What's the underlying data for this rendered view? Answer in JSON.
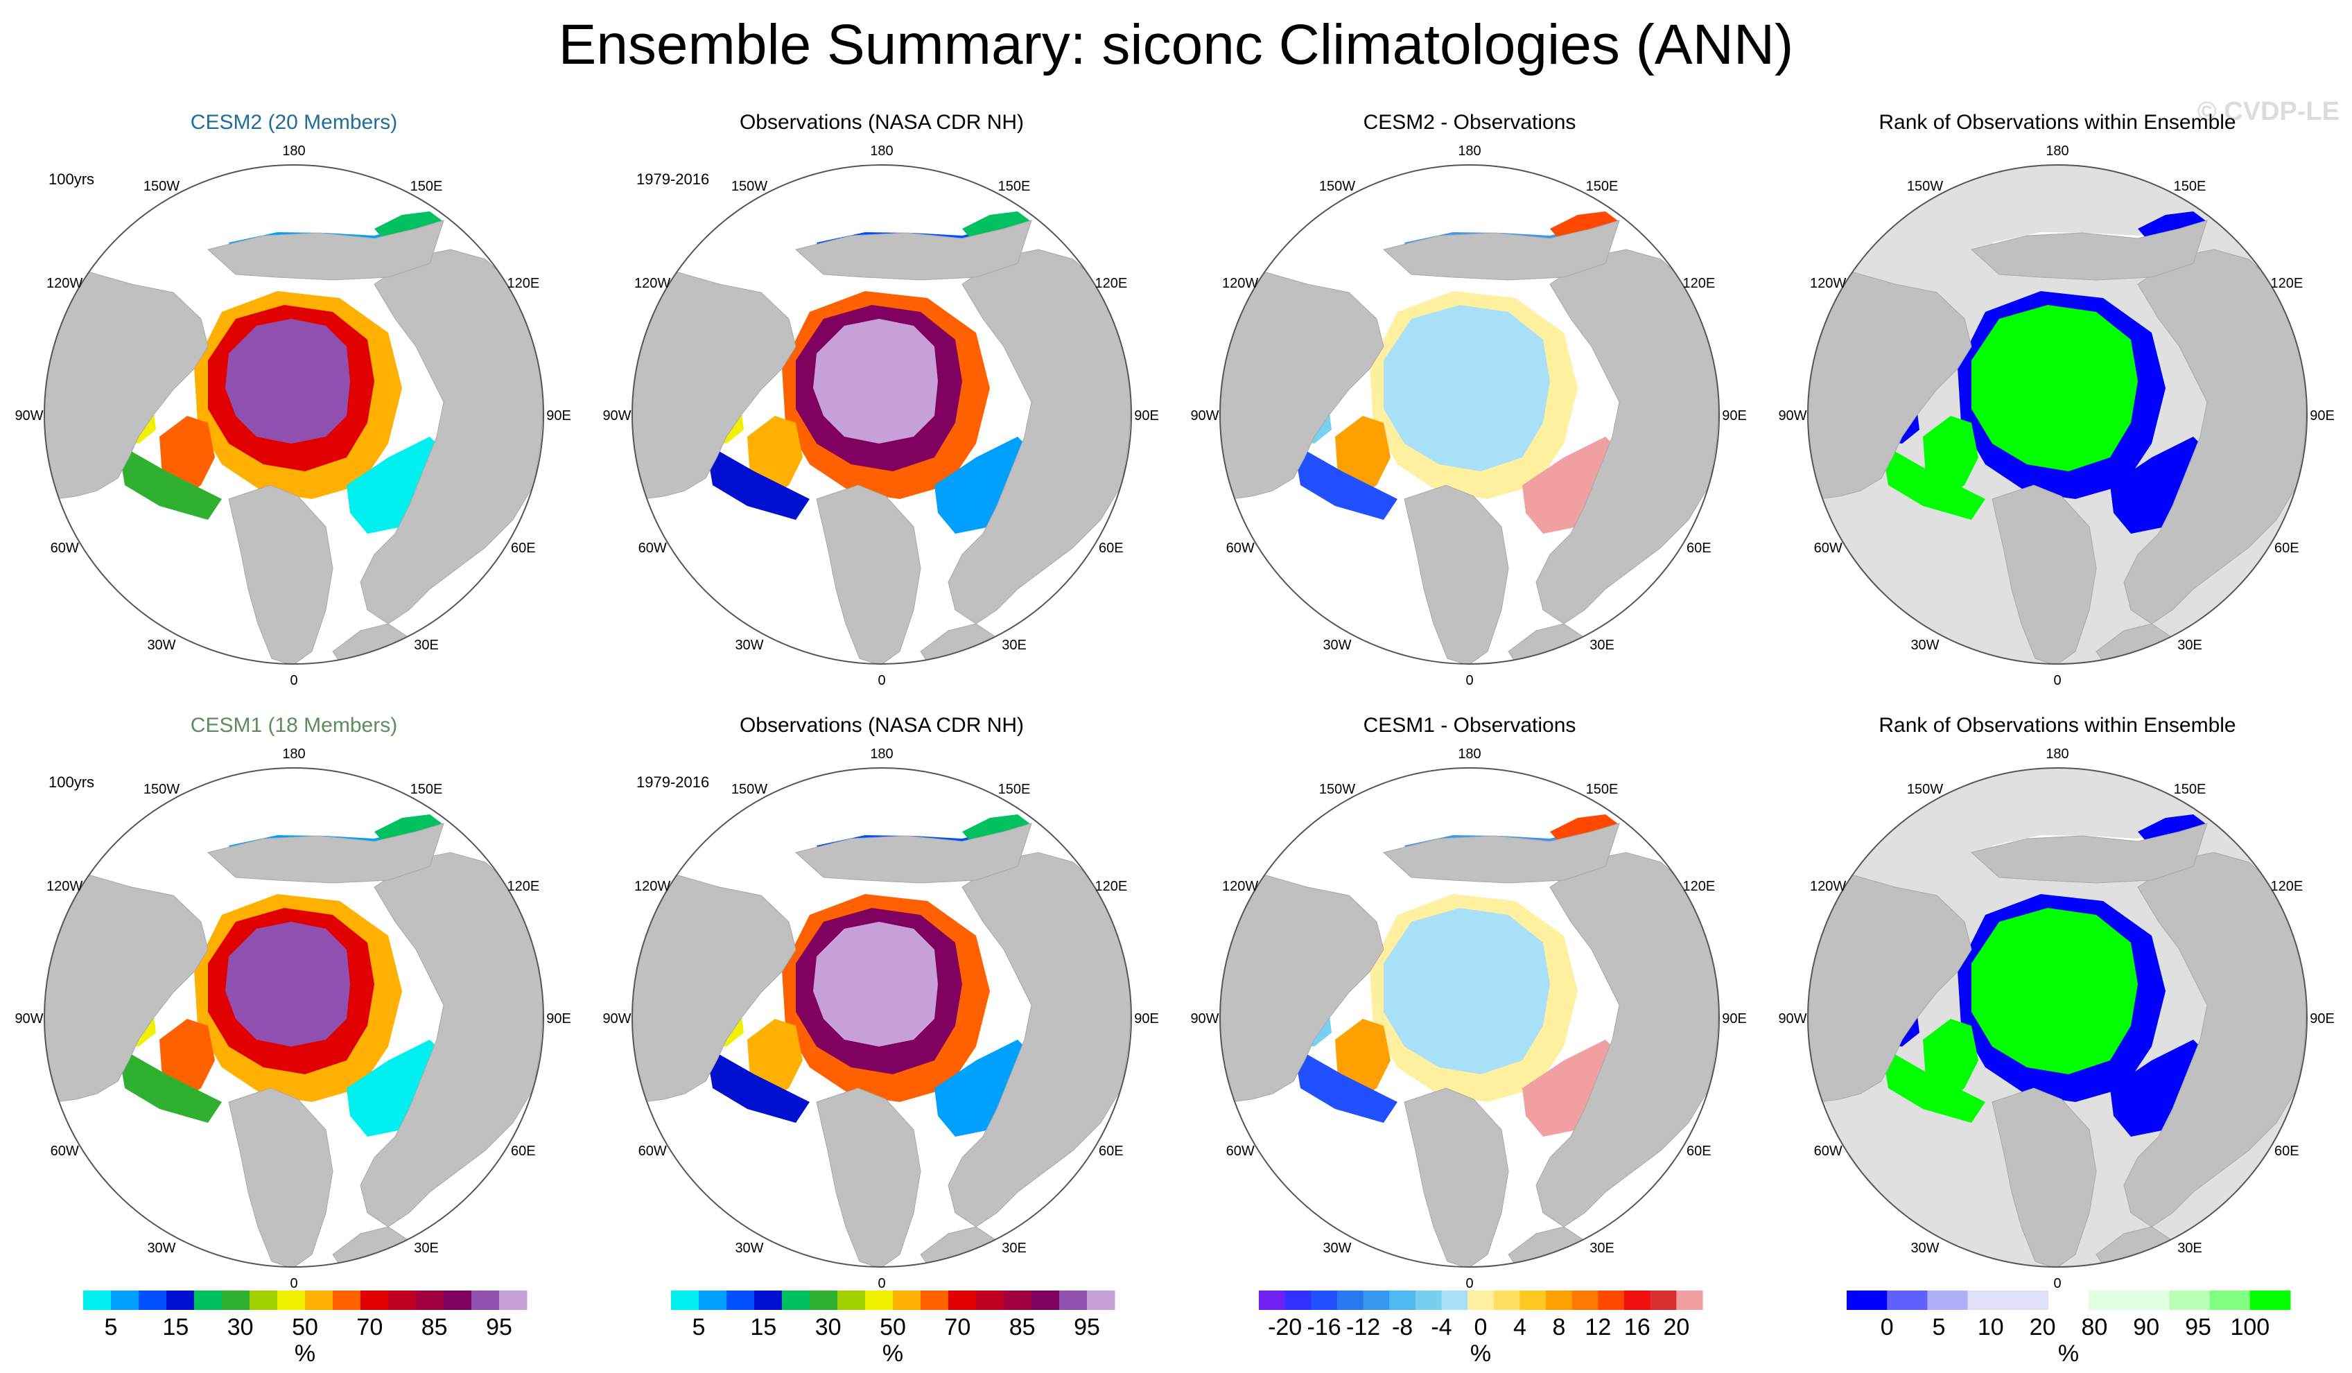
{
  "page": {
    "title": "Ensemble Summary: siconc Climatologies (ANN)",
    "watermark": "© CVDP-LE"
  },
  "lon_labels": [
    "180",
    "150E",
    "120E",
    "90E",
    "60E",
    "30E",
    "0",
    "30W",
    "60W",
    "90W",
    "120W",
    "150W"
  ],
  "colors": {
    "land": "#c0c0c0",
    "ocean": "#ffffff",
    "title_cesm2": "#1f6e9a",
    "title_cesm1": "#5e8c5e",
    "rank_background": "#e0e0e0"
  },
  "panels": [
    {
      "id": "r1c1",
      "title": "CESM2 (20 Members)",
      "title_color": "#1f6e9a",
      "note": "100yrs",
      "kind": "clim"
    },
    {
      "id": "r1c2",
      "title": "Observations (NASA CDR NH)",
      "title_color": "#000000",
      "note": "1979-2016",
      "kind": "obs"
    },
    {
      "id": "r1c3",
      "title": "CESM2 - Observations",
      "title_color": "#000000",
      "note": "",
      "kind": "diff"
    },
    {
      "id": "r1c4",
      "title": "Rank of Observations within Ensemble",
      "title_color": "#000000",
      "note": "",
      "kind": "rank"
    },
    {
      "id": "r2c1",
      "title": "CESM1 (18 Members)",
      "title_color": "#5e8c5e",
      "note": "100yrs",
      "kind": "clim"
    },
    {
      "id": "r2c2",
      "title": "Observations (NASA CDR NH)",
      "title_color": "#000000",
      "note": "1979-2016",
      "kind": "obs"
    },
    {
      "id": "r2c3",
      "title": "CESM1 - Observations",
      "title_color": "#000000",
      "note": "",
      "kind": "diff"
    },
    {
      "id": "r2c4",
      "title": "Rank of Observations within Ensemble",
      "title_color": "#000000",
      "note": "",
      "kind": "rank"
    }
  ],
  "colorbars": [
    {
      "id": "cb1",
      "unit": "%",
      "colors": [
        "#00f0f0",
        "#00a0ff",
        "#0050ff",
        "#0010d0",
        "#00c060",
        "#30b030",
        "#a0d000",
        "#f0f000",
        "#ffb000",
        "#ff6000",
        "#e00000",
        "#c00020",
        "#a00040",
        "#800060",
        "#9050b0",
        "#c8a0d8"
      ],
      "labels": [
        "5",
        "15",
        "30",
        "50",
        "70",
        "85",
        "95"
      ]
    },
    {
      "id": "cb2",
      "unit": "%",
      "colors": [
        "#00f0f0",
        "#00a0ff",
        "#0050ff",
        "#0010d0",
        "#00c060",
        "#30b030",
        "#a0d000",
        "#f0f000",
        "#ffb000",
        "#ff6000",
        "#e00000",
        "#c00020",
        "#a00040",
        "#800060",
        "#9050b0",
        "#c8a0d8"
      ],
      "labels": [
        "5",
        "15",
        "30",
        "50",
        "70",
        "85",
        "95"
      ]
    },
    {
      "id": "cb3",
      "unit": "%",
      "colors": [
        "#7020f0",
        "#3030ff",
        "#2050ff",
        "#2878f0",
        "#3898f0",
        "#50b8f0",
        "#78d0f0",
        "#a8e0f8",
        "#fff0a0",
        "#ffe060",
        "#ffc820",
        "#ffa000",
        "#ff7800",
        "#ff4800",
        "#f01010",
        "#d83030",
        "#f0a0a0"
      ],
      "labels": [
        "-20",
        "-16",
        "-12",
        "-8",
        "-4",
        "0",
        "4",
        "8",
        "12",
        "16",
        "20"
      ]
    },
    {
      "id": "cb4",
      "unit": "%",
      "colors": [
        "#0000ff",
        "#6060ff",
        "#b0b0f8",
        "#e0e0f8",
        "#e0e0f8",
        "#ffffff",
        "#e0ffe0",
        "#e0ffe0",
        "#b8ffb8",
        "#80ff80",
        "#00ff00"
      ],
      "labels": [
        "0",
        "5",
        "10",
        "20",
        "80",
        "90",
        "95",
        "100"
      ]
    }
  ]
}
